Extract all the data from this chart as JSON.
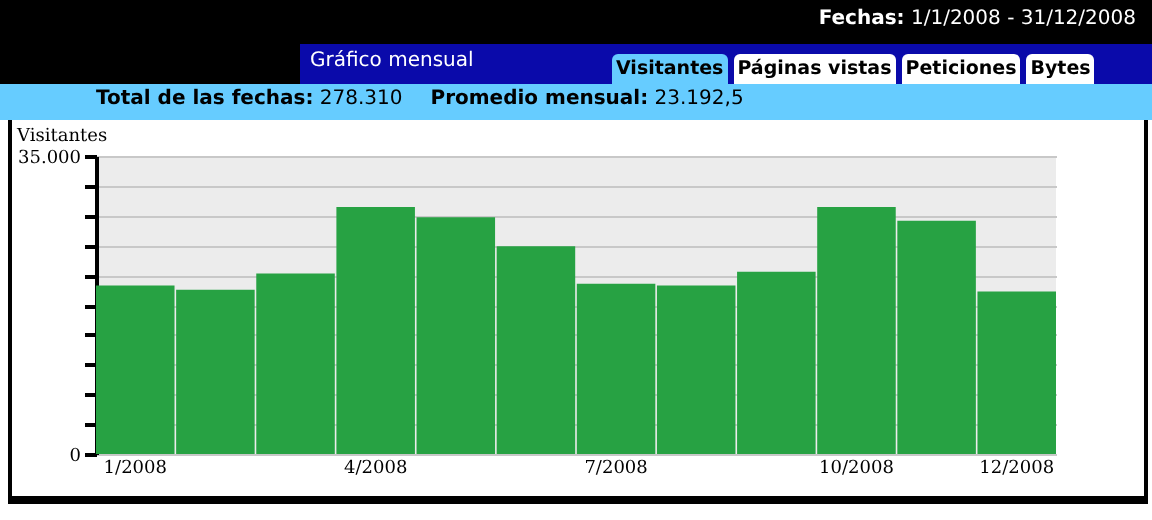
{
  "chart_data": {
    "type": "bar",
    "title": "Gráfico mensual",
    "ylabel": "Visitantes",
    "annotations": [
      "Fechas: 1/1/2008 - 31/12/2008",
      "Total de las fechas: 278.310",
      "Promedio mensual: 23.192,5",
      "Visitantes",
      "Páginas vistas",
      "Peticiones",
      "Bytes"
    ],
    "categories": [
      "1/2008",
      null,
      null,
      "4/2008",
      null,
      null,
      "7/2008",
      null,
      null,
      "10/2008",
      null,
      "12/2008"
    ],
    "values": [
      19800,
      19300,
      21200,
      29000,
      27800,
      24400,
      20000,
      19800,
      21400,
      29000,
      27400,
      19100
    ],
    "color": "#27a243",
    "ylim": [
      0,
      35000
    ],
    "yticks": [
      0,
      {
        "value": 3500,
        "label": null
      },
      {
        "value": 7000,
        "label": null
      },
      {
        "value": 10500,
        "label": null
      },
      {
        "value": 14000,
        "label": null
      },
      {
        "value": 17500,
        "label": null
      },
      {
        "value": 21000,
        "label": null
      },
      {
        "value": 24500,
        "label": null
      },
      {
        "value": 28000,
        "label": null
      },
      {
        "value": 31500,
        "label": null
      },
      {
        "value": 35000,
        "label": "35.000"
      }
    ],
    "grid": "y"
  }
}
